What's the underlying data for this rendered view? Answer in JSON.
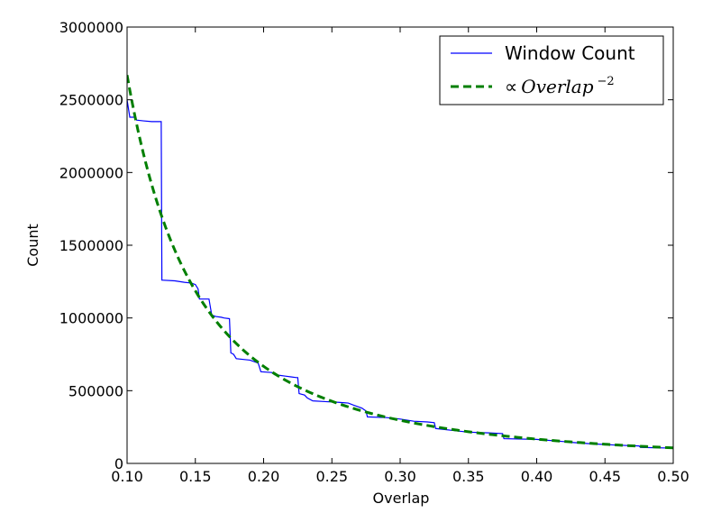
{
  "chart_data": {
    "type": "line",
    "xlabel": "Overlap",
    "ylabel": "Count",
    "xlim": [
      0.1,
      0.5
    ],
    "ylim": [
      0,
      3000000
    ],
    "xticks": [
      "0.10",
      "0.15",
      "0.20",
      "0.25",
      "0.30",
      "0.35",
      "0.40",
      "0.45",
      "0.50"
    ],
    "yticks": [
      "0",
      "500000",
      "1000000",
      "1500000",
      "2000000",
      "2500000",
      "3000000"
    ],
    "grid": false,
    "legend_position": "top-right",
    "series": [
      {
        "name": "Window Count",
        "color": "#0000ff",
        "style": "solid",
        "points": [
          [
            0.1,
            2500000
          ],
          [
            0.102,
            2380000
          ],
          [
            0.106,
            2380000
          ],
          [
            0.107,
            2360000
          ],
          [
            0.112,
            2355000
          ],
          [
            0.118,
            2350000
          ],
          [
            0.125,
            2350000
          ],
          [
            0.1255,
            1260000
          ],
          [
            0.135,
            1255000
          ],
          [
            0.142,
            1245000
          ],
          [
            0.147,
            1240000
          ],
          [
            0.15,
            1230000
          ],
          [
            0.152,
            1200000
          ],
          [
            0.153,
            1130000
          ],
          [
            0.155,
            1130000
          ],
          [
            0.16,
            1130000
          ],
          [
            0.162,
            1020000
          ],
          [
            0.165,
            1010000
          ],
          [
            0.169,
            1005000
          ],
          [
            0.171,
            1000000
          ],
          [
            0.175,
            995000
          ],
          [
            0.176,
            760000
          ],
          [
            0.178,
            750000
          ],
          [
            0.18,
            720000
          ],
          [
            0.19,
            710000
          ],
          [
            0.193,
            700000
          ],
          [
            0.196,
            690000
          ],
          [
            0.198,
            630000
          ],
          [
            0.206,
            625000
          ],
          [
            0.208,
            610000
          ],
          [
            0.212,
            605000
          ],
          [
            0.216,
            600000
          ],
          [
            0.22,
            595000
          ],
          [
            0.224,
            590000
          ],
          [
            0.225,
            590000
          ],
          [
            0.226,
            480000
          ],
          [
            0.23,
            470000
          ],
          [
            0.232,
            450000
          ],
          [
            0.236,
            430000
          ],
          [
            0.245,
            425000
          ],
          [
            0.255,
            420000
          ],
          [
            0.262,
            415000
          ],
          [
            0.266,
            400000
          ],
          [
            0.272,
            380000
          ],
          [
            0.275,
            360000
          ],
          [
            0.276,
            320000
          ],
          [
            0.29,
            315000
          ],
          [
            0.3,
            305000
          ],
          [
            0.31,
            290000
          ],
          [
            0.32,
            285000
          ],
          [
            0.325,
            280000
          ],
          [
            0.326,
            240000
          ],
          [
            0.34,
            225000
          ],
          [
            0.35,
            215000
          ],
          [
            0.365,
            210000
          ],
          [
            0.375,
            205000
          ],
          [
            0.376,
            170000
          ],
          [
            0.4,
            165000
          ],
          [
            0.42,
            150000
          ],
          [
            0.425,
            145000
          ],
          [
            0.44,
            135000
          ],
          [
            0.46,
            125000
          ],
          [
            0.475,
            120000
          ],
          [
            0.476,
            110000
          ],
          [
            0.5,
            105000
          ]
        ]
      },
      {
        "name": "∝Overlap⁻²",
        "color": "#007f00",
        "style": "dashed",
        "formula_coefficient": 26700,
        "formula_exponent": -2
      }
    ]
  },
  "legend": {
    "entries": [
      {
        "label": "Window Count"
      },
      {
        "prefix": "∝",
        "label": "Overlap",
        "superscript": "−2"
      }
    ]
  }
}
